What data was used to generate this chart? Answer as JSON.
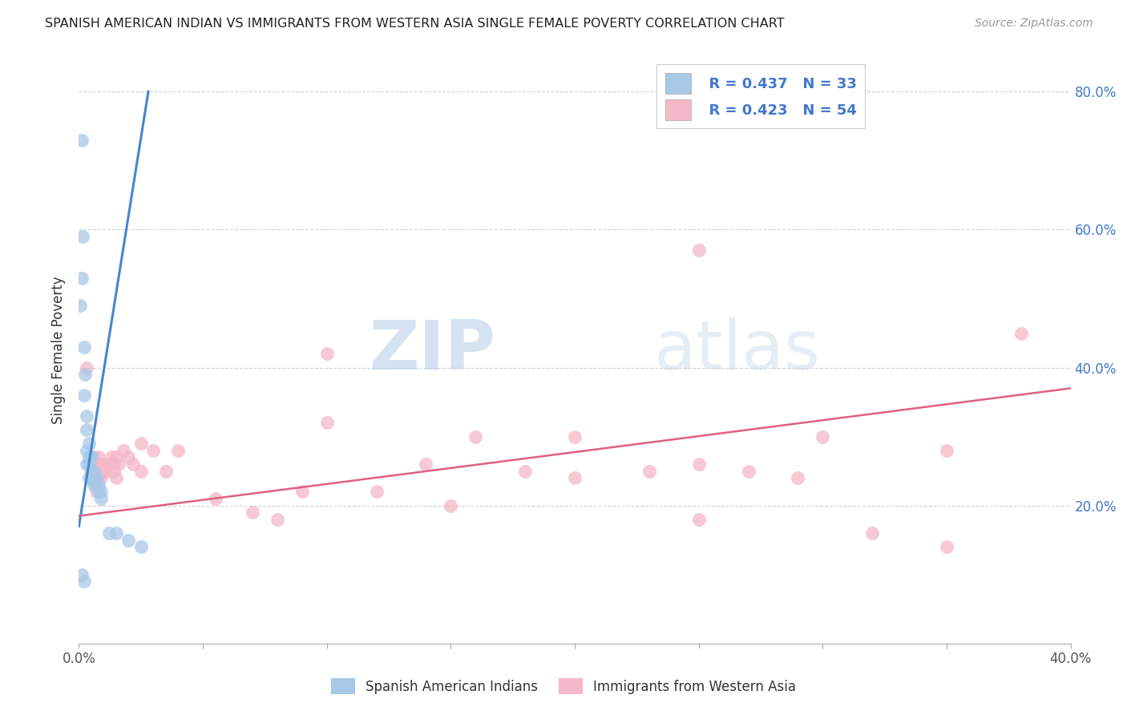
{
  "title": "SPANISH AMERICAN INDIAN VS IMMIGRANTS FROM WESTERN ASIA SINGLE FEMALE POVERTY CORRELATION CHART",
  "source": "Source: ZipAtlas.com",
  "ylabel": "Single Female Poverty",
  "right_yticklabels": [
    "20.0%",
    "40.0%",
    "60.0%",
    "80.0%"
  ],
  "right_yticks": [
    0.2,
    0.4,
    0.6,
    0.8
  ],
  "legend_r1": "R = 0.437",
  "legend_n1": "N = 33",
  "legend_r2": "R = 0.423",
  "legend_n2": "N = 54",
  "legend_label1": "Spanish American Indians",
  "legend_label2": "Immigrants from Western Asia",
  "color_blue": "#a8c8e8",
  "color_pink": "#f4b8c8",
  "color_blue_line": "#4488cc",
  "color_pink_line": "#e06080",
  "color_blue_text": "#4477cc",
  "watermark_zip": "ZIP",
  "watermark_atlas": "atlas",
  "blue_scatter_x": [
    0.001,
    0.0015,
    0.001,
    0.0005,
    0.002,
    0.0025,
    0.002,
    0.003,
    0.003,
    0.004,
    0.003,
    0.004,
    0.005,
    0.004,
    0.005,
    0.006,
    0.006,
    0.007,
    0.007,
    0.008,
    0.008,
    0.009,
    0.009,
    0.001,
    0.002,
    0.003,
    0.004,
    0.005,
    0.006,
    0.012,
    0.015,
    0.02,
    0.025
  ],
  "blue_scatter_y": [
    0.73,
    0.59,
    0.53,
    0.49,
    0.43,
    0.39,
    0.36,
    0.33,
    0.31,
    0.29,
    0.28,
    0.27,
    0.27,
    0.26,
    0.25,
    0.25,
    0.24,
    0.24,
    0.23,
    0.23,
    0.22,
    0.22,
    0.21,
    0.1,
    0.09,
    0.26,
    0.24,
    0.24,
    0.23,
    0.16,
    0.16,
    0.15,
    0.14
  ],
  "pink_scatter_x": [
    0.003,
    0.005,
    0.006,
    0.006,
    0.007,
    0.007,
    0.008,
    0.008,
    0.008,
    0.009,
    0.009,
    0.009,
    0.01,
    0.01,
    0.011,
    0.012,
    0.013,
    0.014,
    0.014,
    0.015,
    0.015,
    0.016,
    0.018,
    0.02,
    0.022,
    0.025,
    0.025,
    0.03,
    0.035,
    0.04,
    0.055,
    0.07,
    0.08,
    0.09,
    0.1,
    0.12,
    0.14,
    0.16,
    0.18,
    0.2,
    0.23,
    0.25,
    0.27,
    0.29,
    0.32,
    0.35,
    0.38,
    0.1,
    0.15,
    0.2,
    0.25,
    0.3,
    0.35,
    0.25
  ],
  "pink_scatter_y": [
    0.4,
    0.25,
    0.27,
    0.26,
    0.25,
    0.22,
    0.27,
    0.26,
    0.24,
    0.26,
    0.25,
    0.24,
    0.26,
    0.25,
    0.25,
    0.26,
    0.27,
    0.26,
    0.25,
    0.27,
    0.24,
    0.26,
    0.28,
    0.27,
    0.26,
    0.29,
    0.25,
    0.28,
    0.25,
    0.28,
    0.21,
    0.19,
    0.18,
    0.22,
    0.32,
    0.22,
    0.26,
    0.3,
    0.25,
    0.3,
    0.25,
    0.57,
    0.25,
    0.24,
    0.16,
    0.14,
    0.45,
    0.42,
    0.2,
    0.24,
    0.26,
    0.3,
    0.28,
    0.18
  ],
  "blue_line_x": [
    0.0,
    0.028
  ],
  "blue_line_y": [
    0.17,
    0.8
  ],
  "pink_line_x": [
    0.0,
    0.4
  ],
  "pink_line_y": [
    0.185,
    0.37
  ],
  "xlim": [
    0.0,
    0.4
  ],
  "ylim": [
    0.0,
    0.85
  ],
  "grid_yticks": [
    0.2,
    0.4,
    0.6,
    0.8
  ]
}
